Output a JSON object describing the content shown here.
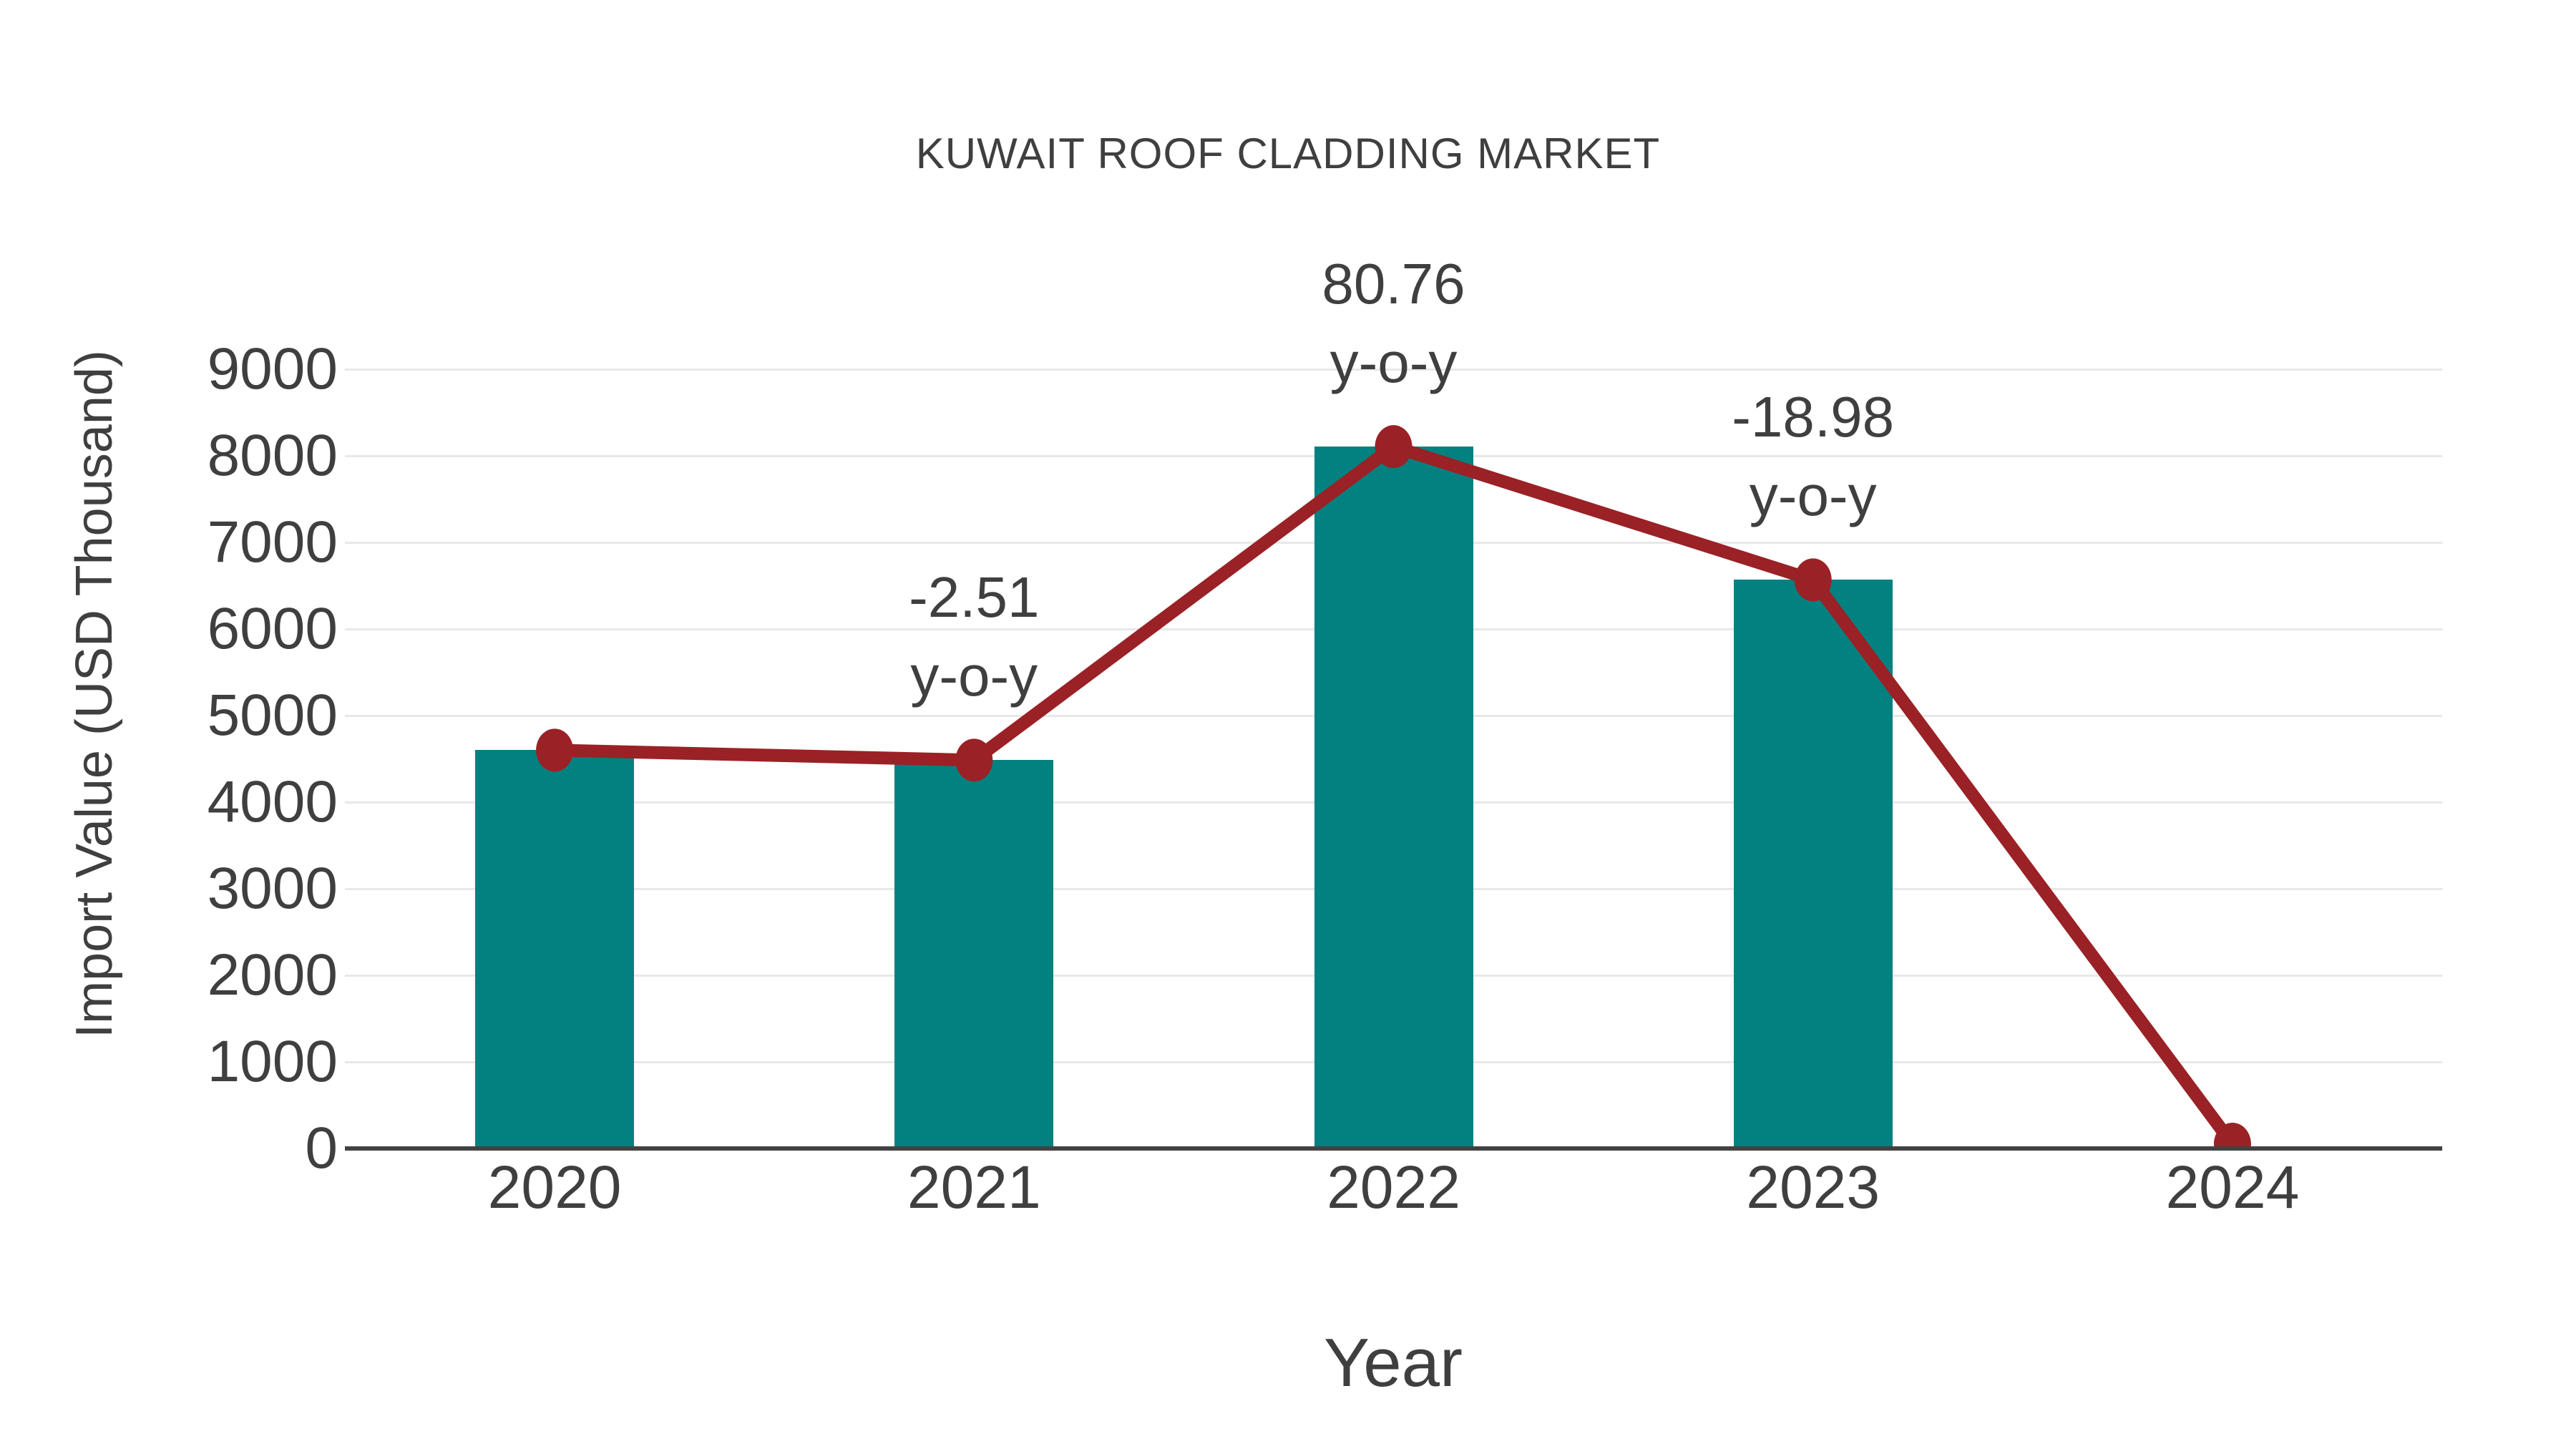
{
  "chart_data": {
    "type": "bar+line",
    "title": "KUWAIT ROOF CLADDING MARKET",
    "xlabel": "Year",
    "ylabel": "Import Value (USD Thousand)",
    "categories": [
      "2020",
      "2021",
      "2022",
      "2023",
      "2024"
    ],
    "series": [
      {
        "name": "import-value-bars",
        "type": "bar",
        "values": [
          4600,
          4485,
          8106,
          6567,
          null
        ]
      },
      {
        "name": "import-value-trend-line",
        "type": "line",
        "values": [
          4600,
          4485,
          8106,
          6567,
          50
        ]
      }
    ],
    "annotations": [
      {
        "category": "2021",
        "line1": "-2.51",
        "line2": "y-o-y"
      },
      {
        "category": "2022",
        "line1": "80.76",
        "line2": "y-o-y"
      },
      {
        "category": "2023",
        "line1": "-18.98",
        "line2": "y-o-y"
      }
    ],
    "yticks": [
      "0",
      "1000",
      "2000",
      "3000",
      "4000",
      "5000",
      "6000",
      "7000",
      "8000",
      "9000"
    ],
    "ylim": [
      0,
      9000
    ],
    "grid": "horizontal-only",
    "legend": "none",
    "colors": {
      "bar": "#038180",
      "line": "#9a2125",
      "marker": "#9a2125",
      "text": "#3f3f3f",
      "gridline": "#e8e8e8",
      "axis": "#424242",
      "background": "#ffffff"
    }
  }
}
